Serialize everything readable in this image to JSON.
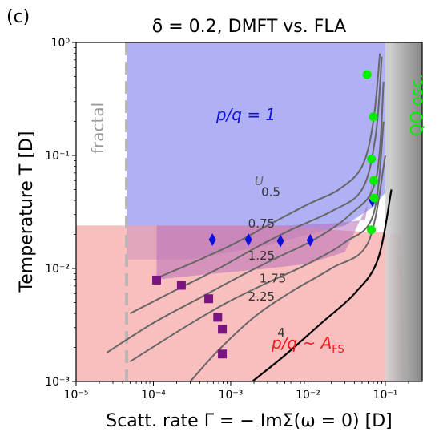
{
  "panel_label": "(c)",
  "title": "δ = 0.2,  DMFT vs. FLA",
  "colors": {
    "blue_region": "#8f8ff0",
    "red_region": "#f6a3a3",
    "purple_region": "#b86eb8",
    "gray_band": "#9a9a9a",
    "curve_gray": "#666666",
    "curve_black": "#000000",
    "green": "#00ee00",
    "blue_marker": "#1010dd",
    "purple_marker": "#7a1480",
    "fractal_line": "#b8b8b8"
  },
  "chart_data": {
    "type": "scatter",
    "title": "δ = 0.2,  DMFT vs. FLA",
    "xlabel": "Scatt. rate Γ = − ImΣ(ω = 0)  [D]",
    "ylabel": "Temperature T  [D]",
    "xscale": "log",
    "yscale": "log",
    "xlim": [
      1e-05,
      0.3
    ],
    "ylim": [
      0.001,
      1.0
    ],
    "xticks": [
      {
        "value": 1e-05,
        "label": "10⁻⁵"
      },
      {
        "value": 0.0001,
        "label": "10⁻⁴"
      },
      {
        "value": 0.001,
        "label": "10⁻³"
      },
      {
        "value": 0.01,
        "label": "10⁻²"
      },
      {
        "value": 0.1,
        "label": "10⁻¹"
      }
    ],
    "yticks": [
      {
        "value": 0.001,
        "label": "10⁻³"
      },
      {
        "value": 0.01,
        "label": "10⁻²"
      },
      {
        "value": 0.1,
        "label": "10⁻¹"
      },
      {
        "value": 1,
        "label": "10⁰"
      }
    ],
    "contour_title": "U",
    "curves": [
      {
        "U": "0.5",
        "color": "gray",
        "x": [
          0.0001,
          0.0003,
          0.001,
          0.003,
          0.01,
          0.025,
          0.05,
          0.07,
          0.085
        ],
        "y": [
          0.008,
          0.011,
          0.016,
          0.024,
          0.037,
          0.05,
          0.08,
          0.2,
          0.8
        ]
      },
      {
        "U": "0.75",
        "color": "gray",
        "x": [
          5e-05,
          0.0002,
          0.0007,
          0.002,
          0.006,
          0.02,
          0.05,
          0.075,
          0.09
        ],
        "y": [
          0.004,
          0.0065,
          0.01,
          0.015,
          0.022,
          0.032,
          0.05,
          0.15,
          0.75
        ]
      },
      {
        "U": "1.25",
        "color": "gray",
        "x": [
          2.5e-05,
          0.0001,
          0.0004,
          0.0013,
          0.004,
          0.012,
          0.035,
          0.075,
          0.095
        ],
        "y": [
          0.0018,
          0.0033,
          0.0055,
          0.0085,
          0.0125,
          0.018,
          0.03,
          0.06,
          0.45
        ]
      },
      {
        "U": "1.75",
        "color": "gray",
        "x": [
          5e-05,
          0.00025,
          0.0009,
          0.003,
          0.01,
          0.03,
          0.07,
          0.095
        ],
        "y": [
          0.0015,
          0.003,
          0.005,
          0.0075,
          0.011,
          0.017,
          0.03,
          0.2
        ]
      },
      {
        "U": "2.25",
        "color": "gray",
        "x": [
          0.0003,
          0.0007,
          0.002,
          0.006,
          0.02,
          0.06,
          0.1
        ],
        "y": [
          0.001,
          0.0019,
          0.0037,
          0.0062,
          0.01,
          0.017,
          0.1
        ]
      },
      {
        "U": "4",
        "color": "black",
        "x": [
          0.0019,
          0.005,
          0.015,
          0.04,
          0.08,
          0.12
        ],
        "y": [
          0.001,
          0.0017,
          0.0033,
          0.006,
          0.012,
          0.05
        ]
      }
    ],
    "curve_labels": [
      {
        "text": "0.5",
        "x": 0.0033,
        "y": 0.044
      },
      {
        "text": "0.75",
        "x": 0.0025,
        "y": 0.023
      },
      {
        "text": "1.25",
        "x": 0.0025,
        "y": 0.012
      },
      {
        "text": "1.75",
        "x": 0.0035,
        "y": 0.0075
      },
      {
        "text": "2.25",
        "x": 0.0025,
        "y": 0.0052
      },
      {
        "text": "4",
        "x": 0.0045,
        "y": 0.0025
      }
    ],
    "markers_green": [
      {
        "x": 0.058,
        "y": 0.52
      },
      {
        "x": 0.07,
        "y": 0.22
      },
      {
        "x": 0.066,
        "y": 0.093
      },
      {
        "x": 0.071,
        "y": 0.06
      },
      {
        "x": 0.072,
        "y": 0.042
      },
      {
        "x": 0.066,
        "y": 0.022
      }
    ],
    "markers_blue": [
      {
        "x": 0.00058,
        "y": 0.018
      },
      {
        "x": 0.0017,
        "y": 0.018
      },
      {
        "x": 0.0044,
        "y": 0.0175
      },
      {
        "x": 0.0107,
        "y": 0.0178
      },
      {
        "x": 0.068,
        "y": 0.04
      }
    ],
    "markers_purple": [
      {
        "x": 0.00011,
        "y": 0.0079
      },
      {
        "x": 0.00023,
        "y": 0.0071
      },
      {
        "x": 0.00052,
        "y": 0.0054
      },
      {
        "x": 0.00068,
        "y": 0.0037
      },
      {
        "x": 0.00078,
        "y": 0.0029
      },
      {
        "x": 0.00078,
        "y": 0.00175
      }
    ],
    "fractal_gamma": 4.5e-05,
    "regions": {
      "blue_pq1": {
        "x": [
          4.5e-05,
          0.11,
          0.11,
          0.095,
          0.07,
          0.03,
          0.01,
          0.003,
          0.001,
          0.0003,
          0.0001,
          4.5e-05
        ],
        "y": [
          1.0,
          1.0,
          0.05,
          0.045,
          0.035,
          0.024,
          0.02,
          0.016,
          0.014,
          0.012,
          0.012,
          0.012
        ]
      },
      "red_afs": {
        "x": [
          1e-05,
          0.0002,
          0.003,
          0.02,
          0.06,
          0.1,
          0.16,
          0.18,
          1e-05
        ],
        "y": [
          0.024,
          0.024,
          0.024,
          0.022,
          0.021,
          0.021,
          0.02,
          0.001,
          0.001
        ]
      },
      "purple_overlap": {
        "x": [
          0.00011,
          0.0008,
          0.005,
          0.02,
          0.055,
          0.07,
          0.065,
          0.03,
          0.01,
          0.003,
          0.0006,
          0.00011
        ],
        "y": [
          0.024,
          0.024,
          0.024,
          0.025,
          0.027,
          0.07,
          0.042,
          0.014,
          0.011,
          0.01,
          0.009,
          0.008
        ]
      }
    },
    "gray_band": {
      "x": [
        0.1,
        0.3
      ],
      "ylim": [
        0.001,
        1.0
      ]
    },
    "annotations": {
      "pq1": "p/q = 1",
      "pqafs": "p/q ~ A",
      "pqafs_sub": "FS",
      "fractal": "fractal",
      "qosc": "QO osc.",
      "U": "U"
    }
  }
}
